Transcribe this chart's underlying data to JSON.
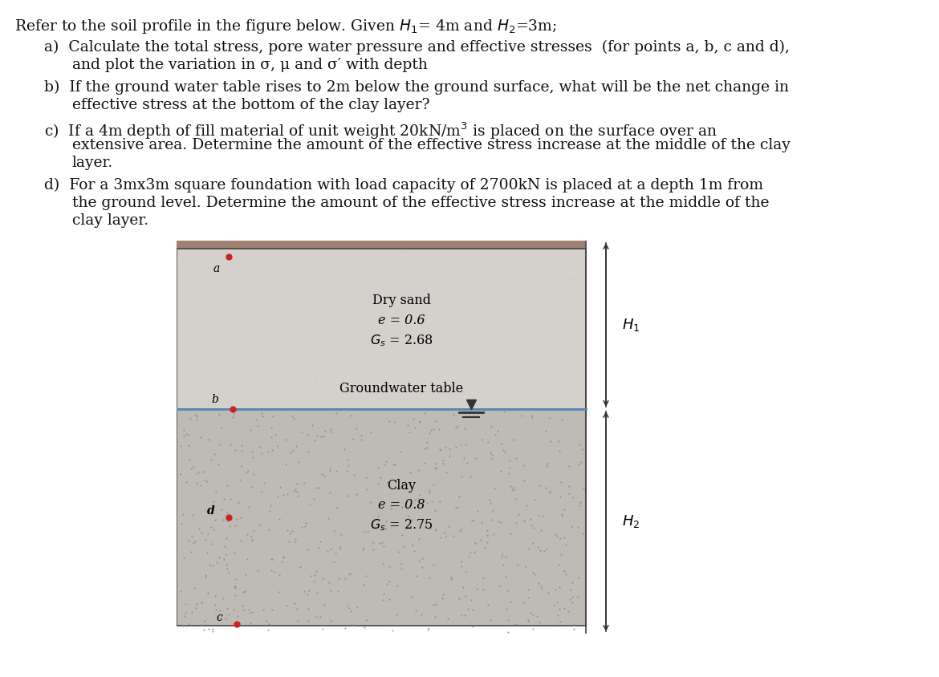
{
  "dry_sand_label": "Dry sand",
  "dry_sand_e": "e = 0.6",
  "dry_sand_Gs": "$G_s$ = 2.68",
  "gwt_label": "Groundwater table",
  "clay_label": "Clay",
  "clay_e": "e = 0.8",
  "clay_Gs": "$G_s$ = 2.75",
  "H1_label": "$H_1$",
  "H2_label": "$H_2$",
  "sand_bg_color": "#d4d0cc",
  "clay_bg_color": "#bebab4",
  "top_bar_color": "#9c8880",
  "border_color": "#444444",
  "gwt_line_color": "#5588bb",
  "point_color": "#cc2222",
  "arrow_color": "#333333",
  "text_color": "#111111",
  "fontsize_main": 13.5,
  "fontsize_diagram": 11.5
}
